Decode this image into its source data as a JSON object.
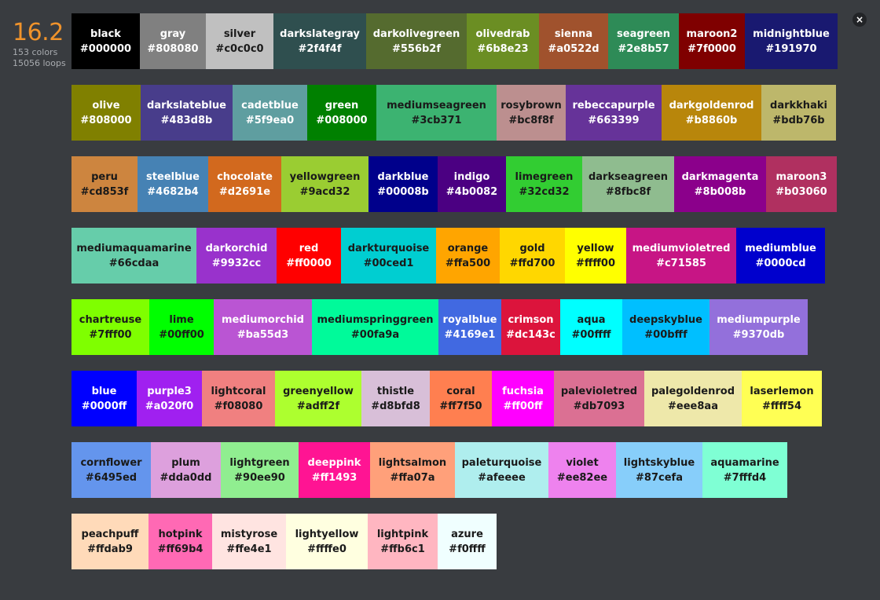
{
  "stats": {
    "score": "16.2",
    "colors_label": "153 colors",
    "loops_label": "15056 loops"
  },
  "close_glyph": "×",
  "rows": [
    [
      {
        "name": "black",
        "hex": "#000000",
        "fg": "#ffffff"
      },
      {
        "name": "gray",
        "hex": "#808080",
        "fg": "#ffffff"
      },
      {
        "name": "silver",
        "hex": "#c0c0c0",
        "fg": "#1a1a1a"
      },
      {
        "name": "darkslategray",
        "hex": "#2f4f4f",
        "fg": "#ffffff"
      },
      {
        "name": "darkolivegreen",
        "hex": "#556b2f",
        "fg": "#ffffff"
      },
      {
        "name": "olivedrab",
        "hex": "#6b8e23",
        "fg": "#ffffff"
      },
      {
        "name": "sienna",
        "hex": "#a0522d",
        "fg": "#ffffff"
      },
      {
        "name": "seagreen",
        "hex": "#2e8b57",
        "fg": "#ffffff"
      },
      {
        "name": "maroon2",
        "hex": "#7f0000",
        "fg": "#ffffff"
      },
      {
        "name": "midnightblue",
        "hex": "#191970",
        "fg": "#ffffff"
      }
    ],
    [
      {
        "name": "olive",
        "hex": "#808000",
        "fg": "#ffffff"
      },
      {
        "name": "darkslateblue",
        "hex": "#483d8b",
        "fg": "#ffffff"
      },
      {
        "name": "cadetblue",
        "hex": "#5f9ea0",
        "fg": "#ffffff"
      },
      {
        "name": "green",
        "hex": "#008000",
        "fg": "#ffffff"
      },
      {
        "name": "mediumseagreen",
        "hex": "#3cb371",
        "fg": "#1a1a1a"
      },
      {
        "name": "rosybrown",
        "hex": "#bc8f8f",
        "fg": "#1a1a1a"
      },
      {
        "name": "rebeccapurple",
        "hex": "#663399",
        "fg": "#ffffff"
      },
      {
        "name": "darkgoldenrod",
        "hex": "#b8860b",
        "fg": "#ffffff"
      },
      {
        "name": "darkkhaki",
        "hex": "#bdb76b",
        "fg": "#1a1a1a"
      }
    ],
    [
      {
        "name": "peru",
        "hex": "#cd853f",
        "fg": "#1a1a1a"
      },
      {
        "name": "steelblue",
        "hex": "#4682b4",
        "fg": "#ffffff"
      },
      {
        "name": "chocolate",
        "hex": "#d2691e",
        "fg": "#ffffff"
      },
      {
        "name": "yellowgreen",
        "hex": "#9acd32",
        "fg": "#1a1a1a"
      },
      {
        "name": "darkblue",
        "hex": "#00008b",
        "fg": "#ffffff"
      },
      {
        "name": "indigo",
        "hex": "#4b0082",
        "fg": "#ffffff"
      },
      {
        "name": "limegreen",
        "hex": "#32cd32",
        "fg": "#1a1a1a"
      },
      {
        "name": "darkseagreen",
        "hex": "#8fbc8f",
        "fg": "#1a1a1a"
      },
      {
        "name": "darkmagenta",
        "hex": "#8b008b",
        "fg": "#ffffff"
      },
      {
        "name": "maroon3",
        "hex": "#b03060",
        "fg": "#ffffff"
      }
    ],
    [
      {
        "name": "mediumaquamarine",
        "hex": "#66cdaa",
        "fg": "#1a1a1a"
      },
      {
        "name": "darkorchid",
        "hex": "#9932cc",
        "fg": "#ffffff"
      },
      {
        "name": "red",
        "hex": "#ff0000",
        "fg": "#ffffff"
      },
      {
        "name": "darkturquoise",
        "hex": "#00ced1",
        "fg": "#1a1a1a"
      },
      {
        "name": "orange",
        "hex": "#ffa500",
        "fg": "#1a1a1a"
      },
      {
        "name": "gold",
        "hex": "#ffd700",
        "fg": "#1a1a1a"
      },
      {
        "name": "yellow",
        "hex": "#ffff00",
        "fg": "#1a1a1a"
      },
      {
        "name": "mediumvioletred",
        "hex": "#c71585",
        "fg": "#ffffff"
      },
      {
        "name": "mediumblue",
        "hex": "#0000cd",
        "fg": "#ffffff"
      }
    ],
    [
      {
        "name": "chartreuse",
        "hex": "#7fff00",
        "fg": "#1a1a1a"
      },
      {
        "name": "lime",
        "hex": "#00ff00",
        "fg": "#1a1a1a"
      },
      {
        "name": "mediumorchid",
        "hex": "#ba55d3",
        "fg": "#ffffff"
      },
      {
        "name": "mediumspringgreen",
        "hex": "#00fa9a",
        "fg": "#1a1a1a"
      },
      {
        "name": "royalblue",
        "hex": "#4169e1",
        "fg": "#ffffff"
      },
      {
        "name": "crimson",
        "hex": "#dc143c",
        "fg": "#ffffff"
      },
      {
        "name": "aqua",
        "hex": "#00ffff",
        "fg": "#1a1a1a"
      },
      {
        "name": "deepskyblue",
        "hex": "#00bfff",
        "fg": "#1a1a1a"
      },
      {
        "name": "mediumpurple",
        "hex": "#9370db",
        "fg": "#ffffff"
      }
    ],
    [
      {
        "name": "blue",
        "hex": "#0000ff",
        "fg": "#ffffff"
      },
      {
        "name": "purple3",
        "hex": "#a020f0",
        "fg": "#ffffff"
      },
      {
        "name": "lightcoral",
        "hex": "#f08080",
        "fg": "#1a1a1a"
      },
      {
        "name": "greenyellow",
        "hex": "#adff2f",
        "fg": "#1a1a1a"
      },
      {
        "name": "thistle",
        "hex": "#d8bfd8",
        "fg": "#1a1a1a"
      },
      {
        "name": "coral",
        "hex": "#ff7f50",
        "fg": "#1a1a1a"
      },
      {
        "name": "fuchsia",
        "hex": "#ff00ff",
        "fg": "#ffffff"
      },
      {
        "name": "palevioletred",
        "hex": "#db7093",
        "fg": "#1a1a1a"
      },
      {
        "name": "palegoldenrod",
        "hex": "#eee8aa",
        "fg": "#1a1a1a"
      },
      {
        "name": "laserlemon",
        "hex": "#ffff54",
        "fg": "#1a1a1a"
      }
    ],
    [
      {
        "name": "cornflower",
        "hex": "#6495ed",
        "fg": "#1a1a1a"
      },
      {
        "name": "plum",
        "hex": "#dda0dd",
        "fg": "#1a1a1a"
      },
      {
        "name": "lightgreen",
        "hex": "#90ee90",
        "fg": "#1a1a1a"
      },
      {
        "name": "deeppink",
        "hex": "#ff1493",
        "fg": "#ffffff"
      },
      {
        "name": "lightsalmon",
        "hex": "#ffa07a",
        "fg": "#1a1a1a"
      },
      {
        "name": "paleturquoise",
        "hex": "#afeeee",
        "fg": "#1a1a1a"
      },
      {
        "name": "violet",
        "hex": "#ee82ee",
        "fg": "#1a1a1a"
      },
      {
        "name": "lightskyblue",
        "hex": "#87cefa",
        "fg": "#1a1a1a"
      },
      {
        "name": "aquamarine",
        "hex": "#7fffd4",
        "fg": "#1a1a1a"
      }
    ],
    [
      {
        "name": "peachpuff",
        "hex": "#ffdab9",
        "fg": "#1a1a1a"
      },
      {
        "name": "hotpink",
        "hex": "#ff69b4",
        "fg": "#1a1a1a"
      },
      {
        "name": "mistyrose",
        "hex": "#ffe4e1",
        "fg": "#1a1a1a"
      },
      {
        "name": "lightyellow",
        "hex": "#ffffe0",
        "fg": "#1a1a1a"
      },
      {
        "name": "lightpink",
        "hex": "#ffb6c1",
        "fg": "#1a1a1a"
      },
      {
        "name": "azure",
        "hex": "#f0ffff",
        "fg": "#1a1a1a"
      }
    ]
  ]
}
